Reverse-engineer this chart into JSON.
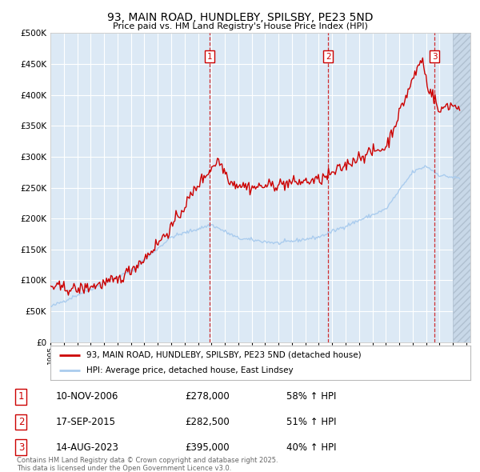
{
  "title": "93, MAIN ROAD, HUNDLEBY, SPILSBY, PE23 5ND",
  "subtitle": "Price paid vs. HM Land Registry's House Price Index (HPI)",
  "legend_label_red": "93, MAIN ROAD, HUNDLEBY, SPILSBY, PE23 5ND (detached house)",
  "legend_label_blue": "HPI: Average price, detached house, East Lindsey",
  "footer": "Contains HM Land Registry data © Crown copyright and database right 2025.\nThis data is licensed under the Open Government Licence v3.0.",
  "transactions": [
    {
      "num": 1,
      "date": "10-NOV-2006",
      "price": "£278,000",
      "hpi_change": "58% ↑ HPI",
      "x_year": 2006.87
    },
    {
      "num": 2,
      "date": "17-SEP-2015",
      "price": "£282,500",
      "hpi_change": "51% ↑ HPI",
      "x_year": 2015.71
    },
    {
      "num": 3,
      "date": "14-AUG-2023",
      "price": "£395,000",
      "hpi_change": "40% ↑ HPI",
      "x_year": 2023.62
    }
  ],
  "ylim": [
    0,
    500000
  ],
  "xlim_start": 1995.0,
  "xlim_end": 2026.3,
  "hatch_start": 2025.0,
  "background_color": "#ffffff",
  "plot_bg_color": "#dce9f5",
  "grid_color": "#ffffff",
  "red_color": "#cc0000",
  "blue_color": "#aaccee",
  "box_color": "#cc0000",
  "y_ticks": [
    0,
    50000,
    100000,
    150000,
    200000,
    250000,
    300000,
    350000,
    400000,
    450000,
    500000
  ]
}
